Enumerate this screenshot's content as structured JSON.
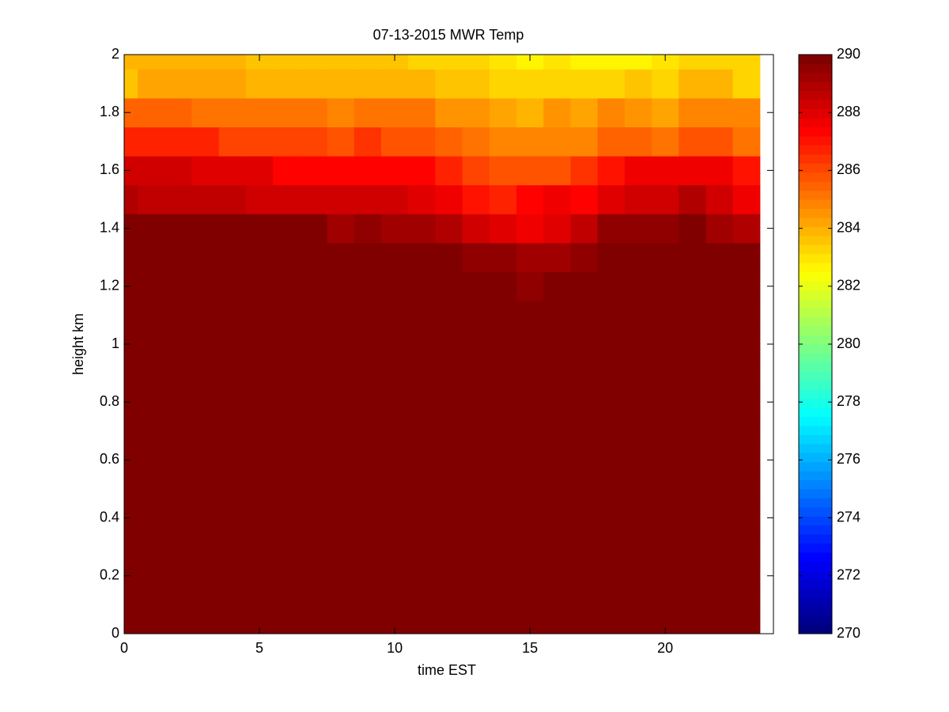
{
  "chart_data": {
    "type": "heatmap",
    "title": "07-13-2015 MWR Temp",
    "x_label": "time EST",
    "y_label": "height km",
    "x": [
      0,
      1,
      2,
      3,
      4,
      5,
      6,
      7,
      8,
      9,
      10,
      11,
      12,
      13,
      14,
      15,
      16,
      17,
      18,
      19,
      20,
      21,
      22,
      23
    ],
    "y": [
      0,
      0.1,
      0.2,
      0.3,
      0.4,
      0.5,
      0.6,
      0.7,
      0.8,
      0.9,
      1.0,
      1.1,
      1.2,
      1.3,
      1.4,
      1.5,
      1.6,
      1.7,
      1.8,
      1.9,
      2.0
    ],
    "z": [
      [
        290,
        290,
        290,
        290,
        290,
        290,
        290,
        290,
        290,
        290,
        290,
        290,
        290,
        290,
        290,
        290,
        290,
        290,
        290,
        290,
        290,
        290,
        290,
        290
      ],
      [
        290,
        290,
        290,
        290,
        290,
        290,
        290,
        290,
        290,
        290,
        290,
        290,
        290,
        290,
        290,
        290,
        290,
        290,
        290,
        290,
        290,
        290,
        290,
        290
      ],
      [
        290,
        290,
        290,
        290,
        290,
        290,
        290,
        290,
        290,
        290,
        290,
        290,
        290,
        290,
        290,
        290,
        290,
        290,
        290,
        290,
        290,
        290,
        290,
        290
      ],
      [
        290,
        290,
        290,
        290,
        290,
        290,
        290,
        290,
        290,
        290,
        290,
        290,
        290,
        290,
        290,
        290,
        290,
        290,
        290,
        290,
        290,
        290,
        290,
        290
      ],
      [
        290,
        290,
        290,
        290,
        290,
        290,
        290,
        290,
        290,
        290,
        290,
        290,
        290,
        290,
        290,
        290,
        290,
        290,
        290,
        290,
        290,
        290,
        290,
        290
      ],
      [
        290,
        290,
        290,
        290,
        290,
        290,
        290,
        290,
        290,
        290,
        290,
        290,
        290,
        290,
        290,
        290,
        290,
        290,
        290,
        290,
        290,
        290,
        290,
        290
      ],
      [
        290,
        290,
        290,
        290,
        290,
        290,
        290,
        290,
        290,
        290,
        290,
        290,
        290,
        290,
        290,
        290,
        290,
        290,
        290,
        290,
        290,
        290,
        290,
        290
      ],
      [
        290,
        290,
        290,
        290,
        290,
        290,
        290,
        290,
        290,
        290,
        290,
        290,
        290,
        290,
        290,
        290,
        290,
        290,
        290,
        290,
        290,
        290,
        290,
        290
      ],
      [
        290,
        290,
        290,
        290,
        290,
        290,
        290,
        290,
        290,
        290,
        290,
        290,
        290,
        290,
        290,
        290,
        290,
        290,
        290,
        290,
        290,
        290,
        290,
        290
      ],
      [
        290,
        290,
        290,
        290,
        290,
        290,
        290,
        290,
        290,
        290,
        290,
        290,
        290,
        290,
        290,
        290,
        290,
        290,
        290,
        290,
        290,
        290,
        290,
        290
      ],
      [
        290,
        290,
        290,
        290,
        290,
        290,
        290,
        290,
        290,
        290,
        290,
        290,
        290,
        290,
        290,
        290,
        290,
        290,
        290,
        290,
        290,
        290,
        290,
        290
      ],
      [
        290,
        290,
        290,
        290,
        290,
        290,
        290,
        290,
        290,
        290,
        290,
        290,
        290,
        290,
        290,
        290,
        290,
        290,
        290,
        290,
        290,
        290,
        290,
        290
      ],
      [
        290,
        290,
        290,
        290,
        290,
        290,
        290,
        290,
        290,
        290,
        290,
        290,
        290,
        290,
        290,
        289.6,
        290,
        290,
        290,
        290,
        290,
        290,
        290,
        290
      ],
      [
        290,
        290,
        290,
        290,
        290,
        290,
        290,
        290,
        290,
        290,
        290,
        290,
        290,
        289.4,
        289.4,
        289.1,
        289.1,
        289.4,
        290,
        290,
        290,
        290,
        290,
        290
      ],
      [
        290,
        290,
        290,
        290,
        290,
        289.7,
        289.7,
        289.7,
        289.3,
        289.6,
        289.3,
        289.3,
        288.8,
        288.4,
        287.9,
        287.5,
        288.0,
        288.5,
        289.5,
        289.4,
        289.4,
        289.7,
        289.2,
        289.0
      ],
      [
        288.9,
        288.6,
        288.6,
        288.7,
        288.7,
        288.4,
        288.4,
        288.4,
        288.4,
        288.4,
        288.4,
        288.0,
        287.6,
        287.1,
        286.8,
        287.2,
        287.5,
        287.3,
        288.0,
        288.4,
        288.4,
        288.8,
        288.3,
        287.8
      ],
      [
        288.3,
        288.3,
        288.3,
        287.9,
        287.9,
        287.9,
        287.4,
        287.4,
        287.4,
        287.4,
        287.4,
        287.3,
        286.8,
        286.2,
        285.9,
        285.9,
        285.9,
        286.5,
        287.0,
        287.6,
        287.6,
        287.6,
        287.6,
        287.0
      ],
      [
        286.8,
        286.6,
        286.6,
        286.6,
        286.2,
        286.2,
        286.2,
        286.2,
        285.8,
        286.3,
        285.9,
        285.9,
        285.5,
        285.0,
        284.8,
        284.8,
        284.8,
        284.8,
        285.5,
        285.6,
        285.3,
        285.8,
        285.8,
        285.3
      ],
      [
        285.5,
        285.5,
        285.5,
        285.3,
        285.3,
        285.3,
        285.3,
        285.3,
        284.7,
        285.2,
        285.0,
        285.0,
        284.6,
        284.6,
        284.3,
        284.0,
        284.5,
        284.2,
        284.8,
        284.6,
        284.3,
        284.8,
        284.8,
        284.8
      ],
      [
        283.6,
        284.3,
        284.3,
        284.3,
        284.3,
        284.0,
        284.0,
        284.0,
        284.0,
        284.0,
        284.0,
        284.0,
        283.6,
        283.6,
        283.4,
        283.2,
        283.2,
        283.2,
        283.3,
        283.5,
        283.2,
        284.0,
        284.0,
        283.4
      ],
      [
        283.8,
        283.8,
        283.8,
        283.8,
        283.8,
        283.6,
        283.6,
        283.6,
        283.6,
        283.6,
        283.6,
        283.3,
        283.3,
        283.3,
        283.0,
        282.8,
        283.0,
        282.5,
        282.5,
        282.8,
        283.0,
        283.4,
        283.4,
        283.4
      ]
    ],
    "xlim": [
      0,
      24
    ],
    "xticks": [
      0,
      5,
      10,
      15,
      20
    ],
    "ylim": [
      0,
      2
    ],
    "yticks": [
      0,
      0.2,
      0.4,
      0.6,
      0.8,
      1,
      1.2,
      1.4,
      1.6,
      1.8,
      2
    ],
    "colormap": "jet",
    "clim": [
      270,
      290
    ],
    "cticks": [
      270,
      272,
      274,
      276,
      278,
      280,
      282,
      284,
      286,
      288,
      290
    ]
  }
}
